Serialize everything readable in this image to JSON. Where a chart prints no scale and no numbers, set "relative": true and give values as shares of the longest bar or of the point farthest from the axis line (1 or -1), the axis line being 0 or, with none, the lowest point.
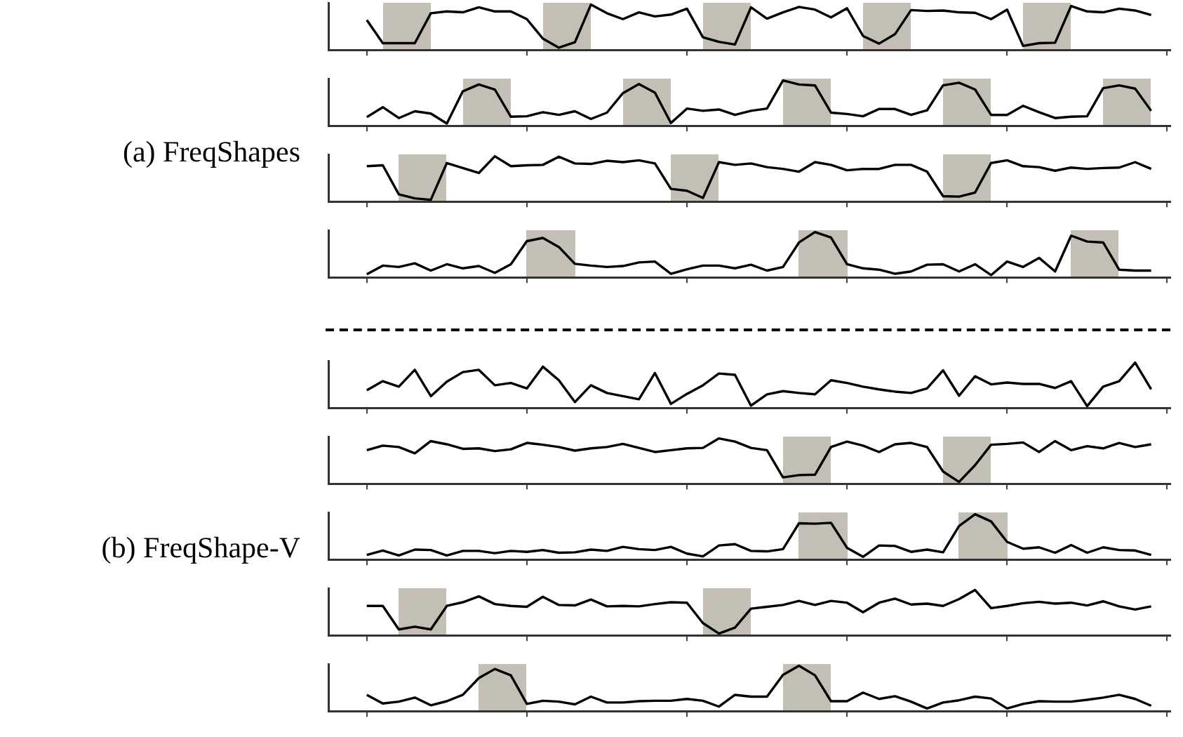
{
  "chart_data": [
    {
      "type": "line",
      "title": "(a) FreqShapes",
      "relative": true,
      "categories": [
        null,
        null,
        null,
        null,
        null,
        null,
        null,
        null,
        null,
        null,
        null,
        null,
        null,
        null,
        null,
        null,
        null,
        null,
        null,
        null,
        null,
        null,
        null,
        null,
        null,
        null,
        null,
        null,
        null,
        null,
        null,
        null,
        null,
        null,
        null,
        null,
        null,
        null,
        null,
        null,
        null,
        null,
        null,
        null,
        null,
        null,
        null,
        null,
        null,
        null
      ],
      "series": [
        {
          "color": "#000000",
          "values": [
            0.66,
            0.15,
            0.15,
            0.15,
            0.81,
            0.85,
            0.83,
            0.94,
            0.85,
            0.85,
            0.68,
            0.25,
            0.05,
            0.17,
            1,
            0.81,
            0.68,
            0.83,
            0.74,
            0.78,
            0.91,
            0.28,
            0.18,
            0.12,
            0.94,
            0.69,
            0.83,
            0.95,
            0.89,
            0.72,
            0.92,
            0.31,
            0.14,
            0.35,
            0.88,
            0.86,
            0.87,
            0.83,
            0.82,
            0.68,
            0.89,
            0.09,
            0.15,
            0.16,
            0.97,
            0.85,
            0.83,
            0.91,
            0.87,
            0.77
          ]
        }
      ]
    },
    {
      "type": "line",
      "relative": true,
      "categories": [
        null,
        null,
        null,
        null,
        null,
        null,
        null,
        null,
        null,
        null,
        null,
        null,
        null,
        null,
        null,
        null,
        null,
        null,
        null,
        null,
        null,
        null,
        null,
        null,
        null,
        null,
        null,
        null,
        null,
        null,
        null,
        null,
        null,
        null,
        null,
        null,
        null,
        null,
        null,
        null,
        null,
        null,
        null,
        null,
        null,
        null,
        null,
        null,
        null,
        null
      ],
      "series": [
        {
          "color": "#000000",
          "values": [
            0.19,
            0.41,
            0.17,
            0.32,
            0.27,
            0.05,
            0.76,
            0.91,
            0.8,
            0.2,
            0.21,
            0.3,
            0.24,
            0.32,
            0.15,
            0.29,
            0.72,
            0.92,
            0.73,
            0.06,
            0.38,
            0.33,
            0.36,
            0.24,
            0.33,
            0.38,
            1,
            0.91,
            0.89,
            0.29,
            0.26,
            0.21,
            0.37,
            0.37,
            0.24,
            0.34,
            0.89,
            0.95,
            0.8,
            0.24,
            0.24,
            0.44,
            0.3,
            0.17,
            0.2,
            0.21,
            0.83,
            0.89,
            0.82,
            0.33
          ]
        }
      ]
    },
    {
      "type": "line",
      "relative": true,
      "categories": [
        null,
        null,
        null,
        null,
        null,
        null,
        null,
        null,
        null,
        null,
        null,
        null,
        null,
        null,
        null,
        null,
        null,
        null,
        null,
        null,
        null,
        null,
        null,
        null,
        null,
        null,
        null,
        null,
        null,
        null,
        null,
        null,
        null,
        null,
        null,
        null,
        null,
        null,
        null,
        null,
        null,
        null,
        null,
        null,
        null,
        null,
        null,
        null,
        null,
        null
      ],
      "series": [
        {
          "color": "#000000",
          "values": [
            0.78,
            0.8,
            0.16,
            0.07,
            0.04,
            0.85,
            0.74,
            0.63,
            1,
            0.78,
            0.8,
            0.81,
            0.99,
            0.84,
            0.83,
            0.9,
            0.87,
            0.91,
            0.84,
            0.28,
            0.24,
            0.08,
            0.87,
            0.81,
            0.84,
            0.76,
            0.72,
            0.66,
            0.87,
            0.81,
            0.69,
            0.72,
            0.72,
            0.81,
            0.81,
            0.66,
            0.12,
            0.11,
            0.2,
            0.85,
            0.91,
            0.78,
            0.76,
            0.68,
            0.75,
            0.72,
            0.74,
            0.75,
            0.87,
            0.72
          ]
        }
      ]
    },
    {
      "type": "line",
      "relative": true,
      "categories": [
        null,
        null,
        null,
        null,
        null,
        null,
        null,
        null,
        null,
        null,
        null,
        null,
        null,
        null,
        null,
        null,
        null,
        null,
        null,
        null,
        null,
        null,
        null,
        null,
        null,
        null,
        null,
        null,
        null,
        null,
        null,
        null,
        null,
        null,
        null,
        null,
        null,
        null,
        null,
        null,
        null,
        null,
        null,
        null,
        null,
        null,
        null,
        null,
        null,
        null
      ],
      "series": [
        {
          "color": "#000000",
          "values": [
            0.07,
            0.26,
            0.23,
            0.31,
            0.15,
            0.29,
            0.2,
            0.25,
            0.1,
            0.29,
            0.8,
            0.87,
            0.67,
            0.3,
            0.26,
            0.23,
            0.25,
            0.33,
            0.35,
            0.08,
            0.18,
            0.26,
            0.26,
            0.2,
            0.28,
            0.15,
            0.23,
            0.77,
            1,
            0.88,
            0.29,
            0.2,
            0.17,
            0.08,
            0.13,
            0.28,
            0.29,
            0.13,
            0.29,
            0.05,
            0.35,
            0.23,
            0.43,
            0.13,
            0.92,
            0.79,
            0.77,
            0.17,
            0.15,
            0.15
          ]
        }
      ]
    },
    {
      "type": "line",
      "title": "(b) FreqShape-V",
      "relative": true,
      "categories": [
        null,
        null,
        null,
        null,
        null,
        null,
        null,
        null,
        null,
        null,
        null,
        null,
        null,
        null,
        null,
        null,
        null,
        null,
        null,
        null,
        null,
        null,
        null,
        null,
        null,
        null,
        null,
        null,
        null,
        null,
        null,
        null,
        null,
        null,
        null,
        null,
        null,
        null,
        null,
        null,
        null,
        null,
        null,
        null,
        null,
        null,
        null,
        null,
        null,
        null
      ],
      "series": [
        {
          "color": "#000000",
          "values": [
            0.39,
            0.59,
            0.47,
            0.84,
            0.26,
            0.58,
            0.79,
            0.84,
            0.5,
            0.55,
            0.43,
            0.91,
            0.61,
            0.13,
            0.5,
            0.33,
            0.26,
            0.19,
            0.77,
            0.09,
            0.31,
            0.5,
            0.76,
            0.73,
            0.05,
            0.3,
            0.37,
            0.33,
            0.3,
            0.61,
            0.55,
            0.47,
            0.41,
            0.36,
            0.33,
            0.43,
            0.83,
            0.27,
            0.7,
            0.52,
            0.56,
            0.53,
            0.53,
            0.44,
            0.59,
            0.04,
            0.47,
            0.59,
            1,
            0.41
          ]
        }
      ]
    },
    {
      "type": "line",
      "relative": true,
      "categories": [
        null,
        null,
        null,
        null,
        null,
        null,
        null,
        null,
        null,
        null,
        null,
        null,
        null,
        null,
        null,
        null,
        null,
        null,
        null,
        null,
        null,
        null,
        null,
        null,
        null,
        null,
        null,
        null,
        null,
        null,
        null,
        null,
        null,
        null,
        null,
        null,
        null,
        null,
        null,
        null,
        null,
        null,
        null,
        null,
        null,
        null,
        null,
        null,
        null,
        null
      ],
      "series": [
        {
          "color": "#000000",
          "values": [
            0.74,
            0.84,
            0.81,
            0.67,
            0.94,
            0.87,
            0.77,
            0.78,
            0.72,
            0.76,
            0.9,
            0.86,
            0.81,
            0.73,
            0.78,
            0.81,
            0.88,
            0.79,
            0.7,
            0.74,
            0.78,
            0.79,
            1,
            0.93,
            0.79,
            0.74,
            0.14,
            0.19,
            0.2,
            0.81,
            0.93,
            0.84,
            0.7,
            0.87,
            0.9,
            0.81,
            0.27,
            0.04,
            0.41,
            0.86,
            0.88,
            0.91,
            0.7,
            0.94,
            0.74,
            0.83,
            0.78,
            0.9,
            0.81,
            0.87
          ]
        }
      ]
    },
    {
      "type": "line",
      "relative": true,
      "categories": [
        null,
        null,
        null,
        null,
        null,
        null,
        null,
        null,
        null,
        null,
        null,
        null,
        null,
        null,
        null,
        null,
        null,
        null,
        null,
        null,
        null,
        null,
        null,
        null,
        null,
        null,
        null,
        null,
        null,
        null,
        null,
        null,
        null,
        null,
        null,
        null,
        null,
        null,
        null,
        null,
        null,
        null,
        null,
        null,
        null,
        null,
        null,
        null,
        null,
        null
      ],
      "series": [
        {
          "color": "#000000",
          "values": [
            0.1,
            0.2,
            0.09,
            0.22,
            0.21,
            0.09,
            0.19,
            0.19,
            0.14,
            0.19,
            0.17,
            0.21,
            0.15,
            0.16,
            0.22,
            0.19,
            0.28,
            0.23,
            0.21,
            0.28,
            0.13,
            0.07,
            0.31,
            0.34,
            0.19,
            0.18,
            0.23,
            0.8,
            0.79,
            0.81,
            0.26,
            0.06,
            0.31,
            0.3,
            0.17,
            0.22,
            0.16,
            0.74,
            1,
            0.84,
            0.39,
            0.24,
            0.27,
            0.15,
            0.32,
            0.15,
            0.27,
            0.21,
            0.2,
            0.1
          ]
        }
      ]
    },
    {
      "type": "line",
      "relative": true,
      "categories": [
        null,
        null,
        null,
        null,
        null,
        null,
        null,
        null,
        null,
        null,
        null,
        null,
        null,
        null,
        null,
        null,
        null,
        null,
        null,
        null,
        null,
        null,
        null,
        null,
        null,
        null,
        null,
        null,
        null,
        null,
        null,
        null,
        null,
        null,
        null,
        null,
        null,
        null,
        null,
        null,
        null,
        null,
        null,
        null,
        null,
        null,
        null,
        null,
        null,
        null
      ],
      "series": [
        {
          "color": "#000000",
          "values": [
            0.65,
            0.65,
            0.13,
            0.19,
            0.13,
            0.65,
            0.73,
            0.86,
            0.69,
            0.65,
            0.63,
            0.85,
            0.67,
            0.66,
            0.79,
            0.64,
            0.65,
            0.64,
            0.69,
            0.73,
            0.72,
            0.27,
            0.04,
            0.17,
            0.59,
            0.63,
            0.67,
            0.76,
            0.67,
            0.76,
            0.72,
            0.51,
            0.72,
            0.81,
            0.68,
            0.7,
            0.65,
            0.8,
            1,
            0.6,
            0.65,
            0.71,
            0.74,
            0.7,
            0.72,
            0.66,
            0.75,
            0.64,
            0.57,
            0.64
          ]
        }
      ]
    },
    {
      "type": "line",
      "relative": true,
      "categories": [
        null,
        null,
        null,
        null,
        null,
        null,
        null,
        null,
        null,
        null,
        null,
        null,
        null,
        null,
        null,
        null,
        null,
        null,
        null,
        null,
        null,
        null,
        null,
        null,
        null,
        null,
        null,
        null,
        null,
        null,
        null,
        null,
        null,
        null,
        null,
        null,
        null,
        null,
        null,
        null,
        null,
        null,
        null,
        null,
        null,
        null,
        null,
        null,
        null,
        null
      ],
      "series": [
        {
          "color": "#000000",
          "values": [
            0.36,
            0.17,
            0.21,
            0.3,
            0.13,
            0.22,
            0.36,
            0.73,
            0.93,
            0.79,
            0.16,
            0.23,
            0.21,
            0.15,
            0.32,
            0.19,
            0.19,
            0.22,
            0.23,
            0.23,
            0.27,
            0.23,
            0.1,
            0.36,
            0.32,
            0.32,
            0.8,
            1,
            0.79,
            0.22,
            0.22,
            0.41,
            0.27,
            0.33,
            0.21,
            0.06,
            0.19,
            0.24,
            0.32,
            0.28,
            0.06,
            0.16,
            0.22,
            0.21,
            0.21,
            0.25,
            0.3,
            0.36,
            0.27,
            0.12
          ]
        }
      ]
    }
  ]
}
